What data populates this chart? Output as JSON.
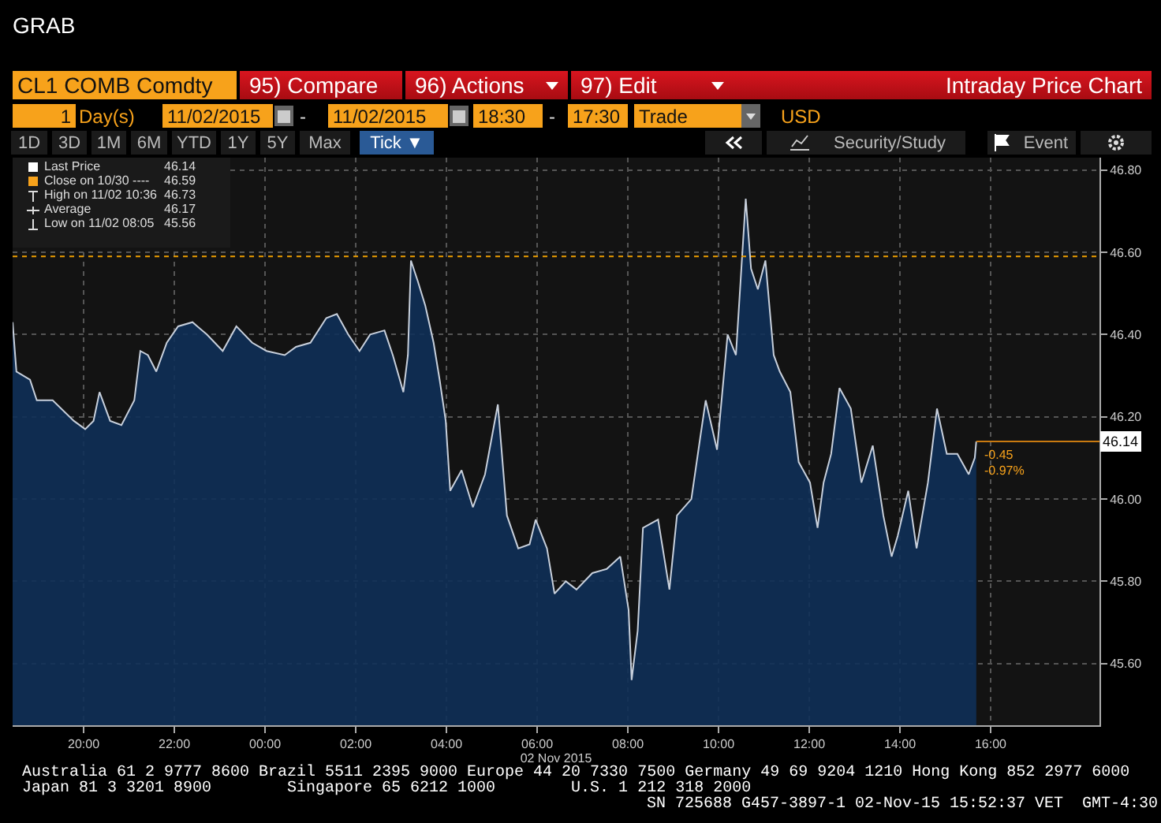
{
  "chart_data": {
    "type": "area",
    "title": "Intraday Price Chart",
    "subtitle": "CL1 COMB Comdty",
    "xlabel": "02 Nov 2015",
    "x": [
      "2015-11-01T18:26",
      "2015-11-01T18:31",
      "2015-11-01T18:49",
      "2015-11-01T18:58",
      "2015-11-01T19:19",
      "2015-11-01T19:47",
      "2015-11-01T20:02",
      "2015-11-01T20:13",
      "2015-11-01T20:21",
      "2015-11-01T20:35",
      "2015-11-01T20:50",
      "2015-11-01T21:07",
      "2015-11-01T21:15",
      "2015-11-01T21:25",
      "2015-11-01T21:36",
      "2015-11-01T21:50",
      "2015-11-01T22:05",
      "2015-11-01T22:24",
      "2015-11-01T22:43",
      "2015-11-01T23:04",
      "2015-11-01T23:22",
      "2015-11-01T23:43",
      "2015-11-02T00:02",
      "2015-11-02T00:26",
      "2015-11-02T00:41",
      "2015-11-02T01:00",
      "2015-11-02T01:21",
      "2015-11-02T01:35",
      "2015-11-02T01:50",
      "2015-11-02T02:05",
      "2015-11-02T02:19",
      "2015-11-02T02:38",
      "2015-11-02T02:49",
      "2015-11-02T03:03",
      "2015-11-02T03:09",
      "2015-11-02T03:13",
      "2015-11-02T03:22",
      "2015-11-02T03:32",
      "2015-11-02T03:43",
      "2015-11-02T03:51",
      "2015-11-02T03:59",
      "2015-11-02T04:05",
      "2015-11-02T04:20",
      "2015-11-02T04:35",
      "2015-11-02T04:51",
      "2015-11-02T05:08",
      "2015-11-02T05:20",
      "2015-11-02T05:35",
      "2015-11-02T05:50",
      "2015-11-02T05:58",
      "2015-11-02T06:13",
      "2015-11-02T06:23",
      "2015-11-02T06:38",
      "2015-11-02T06:52",
      "2015-11-02T07:13",
      "2015-11-02T07:32",
      "2015-11-02T07:50",
      "2015-11-02T08:01",
      "2015-11-02T08:05",
      "2015-11-02T08:13",
      "2015-11-02T08:20",
      "2015-11-02T08:40",
      "2015-11-02T08:55",
      "2015-11-02T09:05",
      "2015-11-02T09:24",
      "2015-11-02T09:35",
      "2015-11-02T09:43",
      "2015-11-02T09:58",
      "2015-11-02T10:12",
      "2015-11-02T10:23",
      "2015-11-02T10:36",
      "2015-11-02T10:43",
      "2015-11-02T10:52",
      "2015-11-02T11:02",
      "2015-11-02T11:13",
      "2015-11-02T11:21",
      "2015-11-02T11:35",
      "2015-11-02T11:46",
      "2015-11-02T12:01",
      "2015-11-02T12:11",
      "2015-11-02T12:19",
      "2015-11-02T12:29",
      "2015-11-02T12:40",
      "2015-11-02T12:55",
      "2015-11-02T13:09",
      "2015-11-02T13:24",
      "2015-11-02T13:38",
      "2015-11-02T13:49",
      "2015-11-02T13:57",
      "2015-11-02T14:11",
      "2015-11-02T14:22",
      "2015-11-02T14:37",
      "2015-11-02T14:49",
      "2015-11-02T15:02",
      "2015-11-02T15:16",
      "2015-11-02T15:31",
      "2015-11-02T15:39",
      "2015-11-02T15:41"
    ],
    "series": [
      {
        "color": "#c8d0dc",
        "values": [
          46.43,
          46.31,
          46.29,
          46.24,
          46.24,
          46.19,
          46.17,
          46.19,
          46.26,
          46.19,
          46.18,
          46.24,
          46.36,
          46.35,
          46.31,
          46.38,
          46.42,
          46.43,
          46.4,
          46.36,
          46.42,
          46.38,
          46.36,
          46.35,
          46.37,
          46.38,
          46.44,
          46.45,
          46.4,
          46.36,
          46.4,
          46.41,
          46.35,
          46.26,
          46.35,
          46.58,
          46.53,
          46.47,
          46.38,
          46.29,
          46.19,
          46.02,
          46.07,
          45.98,
          46.06,
          46.23,
          45.96,
          45.88,
          45.89,
          45.95,
          45.88,
          45.77,
          45.8,
          45.78,
          45.82,
          45.83,
          45.86,
          45.73,
          45.56,
          45.68,
          45.93,
          45.95,
          45.78,
          45.96,
          46.0,
          46.14,
          46.24,
          46.12,
          46.4,
          46.35,
          46.73,
          46.56,
          46.51,
          46.58,
          46.35,
          46.31,
          46.26,
          46.09,
          46.04,
          45.93,
          46.04,
          46.11,
          46.27,
          46.22,
          46.04,
          46.13,
          45.96,
          45.86,
          45.91,
          46.02,
          45.88,
          46.04,
          46.22,
          46.11,
          46.11,
          46.06,
          46.1,
          46.14
        ]
      }
    ],
    "xlim": [
      "2015-11-01T18:26",
      "2015-11-02T18:24"
    ],
    "xticks": [
      {
        "value": "2015-11-01T20:00",
        "label": "20:00"
      },
      {
        "value": "2015-11-01T22:00",
        "label": "22:00"
      },
      {
        "value": "2015-11-02T00:00",
        "label": "00:00"
      },
      {
        "value": "2015-11-02T02:00",
        "label": "02:00"
      },
      {
        "value": "2015-11-02T04:00",
        "label": "04:00"
      },
      {
        "value": "2015-11-02T06:00",
        "label": "06:00"
      },
      {
        "value": "2015-11-02T08:00",
        "label": "08:00"
      },
      {
        "value": "2015-11-02T10:00",
        "label": "10:00"
      },
      {
        "value": "2015-11-02T12:00",
        "label": "12:00"
      },
      {
        "value": "2015-11-02T14:00",
        "label": "14:00"
      },
      {
        "value": "2015-11-02T16:00",
        "label": "16:00"
      }
    ],
    "ylim": [
      45.45,
      46.83
    ],
    "yticks": [
      {
        "value": 45.6,
        "label": "45.60"
      },
      {
        "value": 45.8,
        "label": "45.80"
      },
      {
        "value": 46,
        "label": "46.00"
      },
      {
        "value": 46.2,
        "label": "46.20"
      },
      {
        "value": 46.4,
        "label": "46.40"
      },
      {
        "value": 46.6,
        "label": "46.60"
      },
      {
        "value": 46.8,
        "label": "46.80"
      }
    ],
    "grid": true,
    "ref_lines": [
      {
        "axis": "y",
        "value": 46.59,
        "color": "#f0a000",
        "line_style": "dotted"
      }
    ],
    "annotations": [
      "GRAB",
      "95) Compare",
      "96) Actions",
      "97) Edit",
      "1",
      "Day(s)",
      "11/02/2015",
      "-",
      "11/02/2015",
      "18:30",
      "-",
      "17:30",
      "Trade",
      "USD",
      "1D",
      "3D",
      "1M",
      "6M",
      "YTD",
      "1Y",
      "5Y",
      "Max",
      "Tick ▼",
      "Security/Study",
      "Event",
      "Last Price",
      "46.14",
      "Close on 10/30 ----",
      "46.59",
      "High on 11/02 10:36",
      "46.73",
      "Average",
      "46.17",
      "Low on 11/02 08:05",
      "45.56",
      "Australia 61 2 9777 8600 Brazil 5511 2395 9000 Europe 44 20 7330 7500 Germany 49 69 9204 1210 Hong Kong 852 2977 6000",
      "Japan 81 3 3201 8900        Singapore 65 6212 1000        U.S. 1 212 318 2000",
      "SN 725688 G457-3897-1 02-Nov-15 15:52:37 VET  GMT-4:30",
      {
        "text": "46.14",
        "x": "2015-11-02T15:41",
        "y": 46.14
      },
      "-0.45",
      "-0.97%"
    ]
  }
}
